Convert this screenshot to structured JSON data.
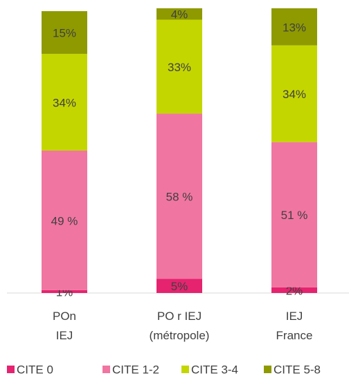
{
  "chart_data": {
    "type": "stacked_bar",
    "categories": [
      "POn\nIEJ",
      "PO r IEJ\n(métropole)",
      "IEJ\nFrance"
    ],
    "ylim": [
      0,
      100
    ],
    "series": [
      {
        "name": "CITE 0",
        "color": "#e5236f",
        "values": [
          1,
          5,
          2
        ],
        "value_labels": [
          "1%",
          "5%",
          "2%"
        ]
      },
      {
        "name": "CITE 1-2",
        "color": "#f175a1",
        "values": [
          49,
          58,
          51
        ],
        "value_labels": [
          "49 %",
          "58 %",
          "51 %"
        ]
      },
      {
        "name": "CITE 3-4",
        "color": "#c4d600",
        "values": [
          34,
          33,
          34
        ],
        "value_labels": [
          "34%",
          "33%",
          "34%"
        ]
      },
      {
        "name": "CITE 5-8",
        "color": "#8e9a00",
        "values": [
          15,
          4,
          13
        ],
        "value_labels": [
          "15%",
          "4%",
          "13%"
        ]
      }
    ]
  }
}
